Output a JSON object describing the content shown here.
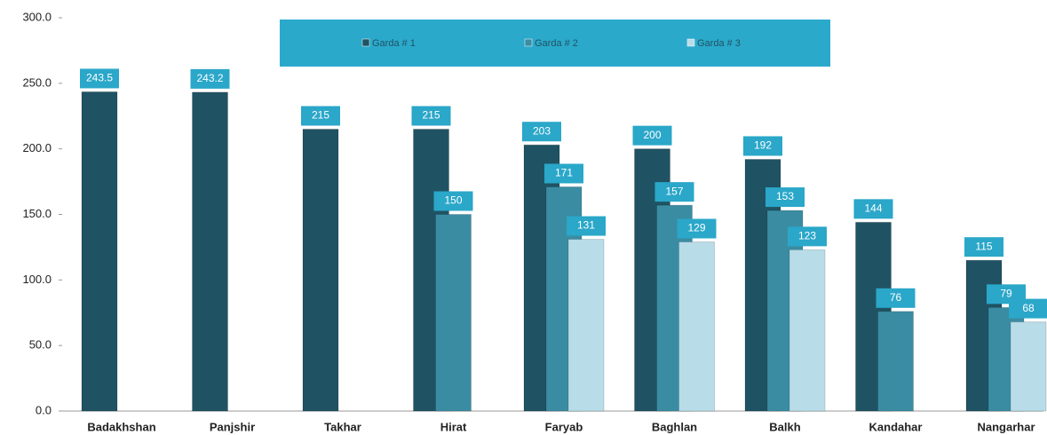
{
  "chart_data": {
    "type": "bar",
    "categories": [
      "Badakhshan",
      "Panjshir",
      "Takhar",
      "Hirat",
      "Faryab",
      "Baghlan",
      "Balkh",
      "Kandahar",
      "Nangarhar"
    ],
    "series": [
      {
        "name": "Garda # 1",
        "color": "#1f5363",
        "values": [
          243.5,
          243.2,
          215,
          215,
          203,
          200,
          192,
          144,
          115
        ]
      },
      {
        "name": "Garda # 2",
        "color": "#3a8ca3",
        "values": [
          null,
          null,
          null,
          150,
          171,
          157,
          153,
          76,
          79
        ]
      },
      {
        "name": "Garda # 3",
        "color": "#b8dce8",
        "values": [
          null,
          null,
          null,
          null,
          131,
          129,
          123,
          null,
          68
        ]
      }
    ],
    "ylim": [
      0,
      300
    ],
    "yticks": [
      {
        "value": 0,
        "label": "0.0"
      },
      {
        "value": 50,
        "label": "50.0"
      },
      {
        "value": 100,
        "label": "100.0"
      },
      {
        "value": 150,
        "label": "150.0"
      },
      {
        "value": 200,
        "label": "200.0"
      },
      {
        "value": 250,
        "label": "250.0"
      },
      {
        "value": 300,
        "label": "300.0"
      }
    ],
    "grid": false,
    "legend": "top"
  }
}
